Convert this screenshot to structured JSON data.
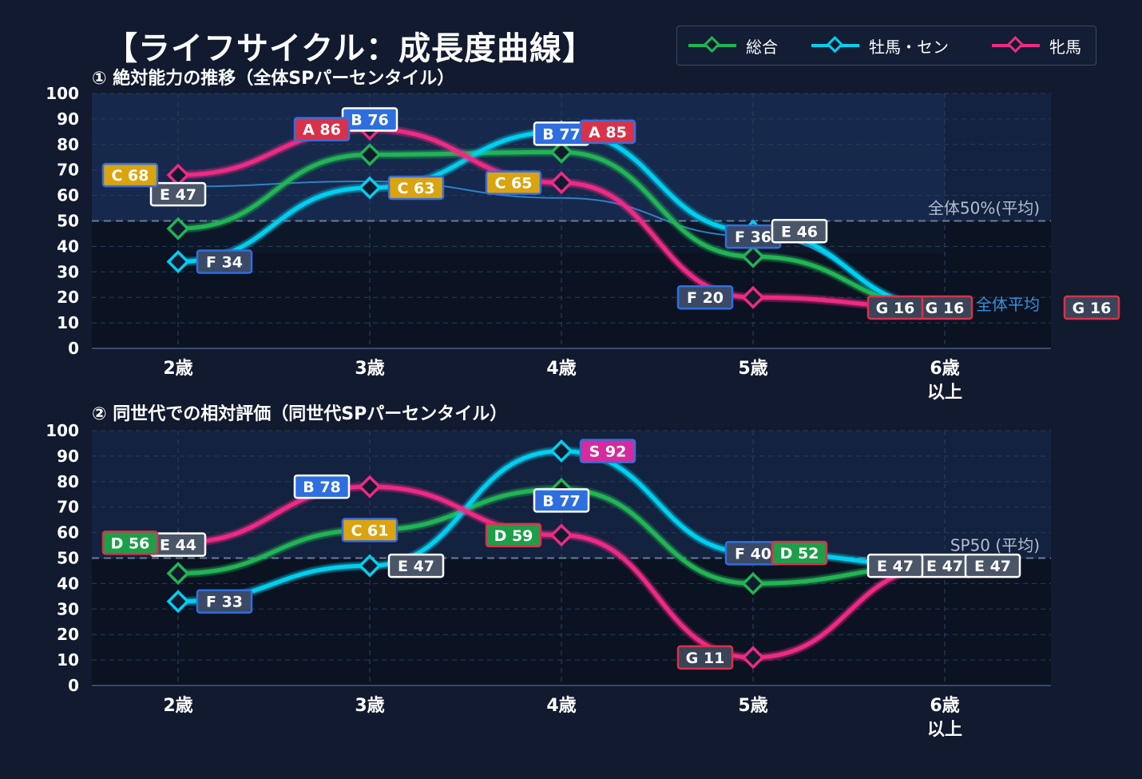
{
  "title": "【ライフサイクル：成長度曲線】",
  "legend": [
    {
      "label": "総合",
      "color": "#22b455"
    },
    {
      "label": "牡馬・セン",
      "color": "#00d0f0"
    },
    {
      "label": "牝馬",
      "color": "#ee2a85"
    }
  ],
  "chart_data": [
    {
      "type": "line",
      "title": "① 絶対能力の推移（全体SPパーセンタイル）",
      "categories": [
        "2歳",
        "3歳",
        "4歳",
        "5歳",
        "6歳\n以上"
      ],
      "ylim": [
        0,
        100
      ],
      "yticks": [
        0,
        10,
        20,
        30,
        40,
        50,
        60,
        70,
        80,
        90,
        100
      ],
      "grid": true,
      "legend": "top-right",
      "reference_line": {
        "value": 50,
        "label": "全体50%(平均)"
      },
      "average_line": {
        "label": "全体平均",
        "values": [
          63.5,
          65.5,
          59,
          44,
          17
        ]
      },
      "series": [
        {
          "name": "総合",
          "color": "#22b455",
          "values": [
            47,
            76,
            77,
            36,
            16
          ],
          "labels": [
            "E 47",
            "B 76",
            "B 77",
            "F 36",
            "G 16"
          ]
        },
        {
          "name": "牡馬・セン",
          "color": "#00d0f0",
          "values": [
            34,
            63,
            85,
            46,
            16
          ],
          "labels": [
            "F 34",
            "C 63",
            "A 85",
            "E 46",
            "G 16"
          ]
        },
        {
          "name": "牝馬",
          "color": "#ee2a85",
          "values": [
            68,
            86,
            65,
            20,
            16
          ],
          "labels": [
            "C 68",
            "A 86",
            "C 65",
            "F 20",
            "G 16"
          ]
        }
      ]
    },
    {
      "type": "line",
      "title": "② 同世代での相対評価（同世代SPパーセンタイル）",
      "categories": [
        "2歳",
        "3歳",
        "4歳",
        "5歳",
        "6歳\n以上"
      ],
      "ylim": [
        0,
        100
      ],
      "yticks": [
        0,
        10,
        20,
        30,
        40,
        50,
        60,
        70,
        80,
        90,
        100
      ],
      "grid": true,
      "reference_line": {
        "value": 50,
        "label": "SP50 (平均)"
      },
      "series": [
        {
          "name": "総合",
          "color": "#22b455",
          "values": [
            44,
            61,
            77,
            40,
            47
          ],
          "labels": [
            "E 44",
            "C 61",
            "B 77",
            "F 40",
            "E 47"
          ]
        },
        {
          "name": "牡馬・セン",
          "color": "#00d0f0",
          "values": [
            33,
            47,
            92,
            52,
            47
          ],
          "labels": [
            "F 33",
            "E 47",
            "S 92",
            "D 52",
            "E 47"
          ]
        },
        {
          "name": "牝馬",
          "color": "#ee2a85",
          "values": [
            56,
            78,
            59,
            11,
            47
          ],
          "labels": [
            "D 56",
            "B 78",
            "D 59",
            "G 11",
            "E 47"
          ]
        }
      ]
    }
  ],
  "grade_colors": {
    "S": {
      "fill": "#d42b9e",
      "border": "#3b6cd8"
    },
    "A": {
      "fill": "#d8324a",
      "border": "#3b6cd8"
    },
    "B": {
      "fill": "#2e6fe0",
      "border": "#ffffff"
    },
    "C": {
      "fill": "#d9a410",
      "border": "#3b6cd8"
    },
    "D": {
      "fill": "#1f9e4a",
      "border": "#d8324a"
    },
    "E": {
      "fill": "#4a5568",
      "border": "#ffffff"
    },
    "F": {
      "fill": "#3a4a66",
      "border": "#2e6fe0"
    },
    "G": {
      "fill": "#3a4458",
      "border": "#d8324a"
    }
  }
}
